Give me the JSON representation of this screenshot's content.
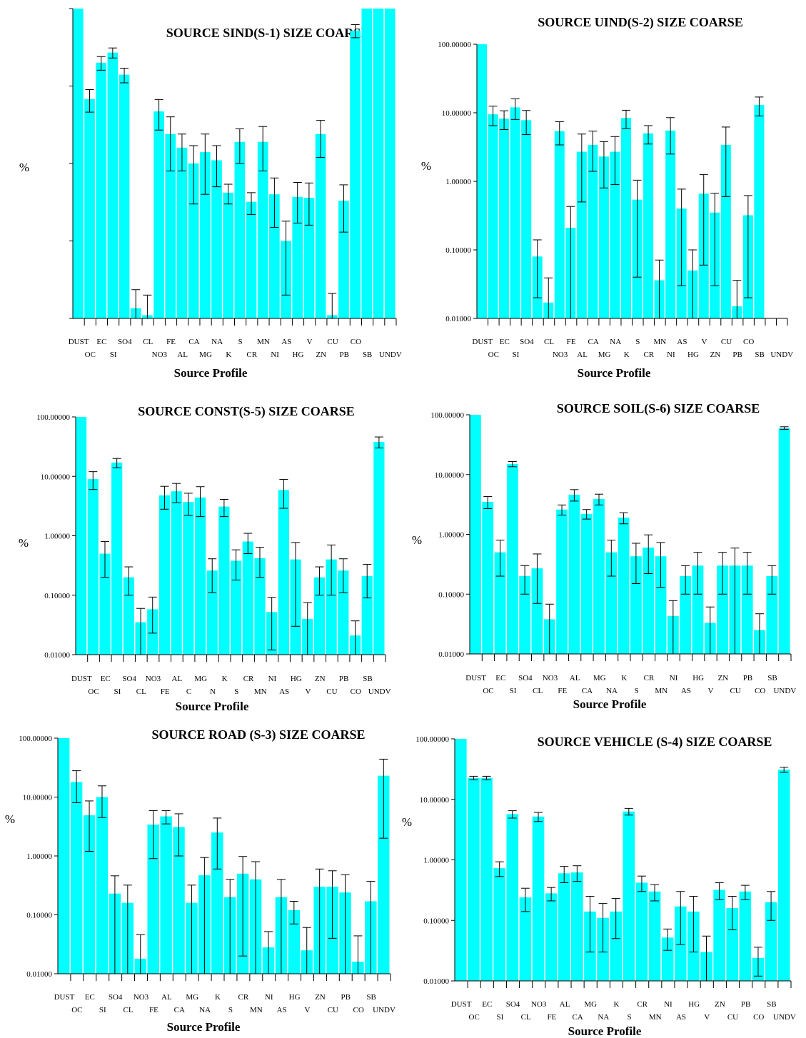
{
  "chart_data": [
    {
      "type": "bar",
      "title": "SOURCE  SIND(S-1)    SIZE COARSE",
      "xlabel": "Source Profile",
      "ylabel": "%",
      "yscale": "log",
      "ytick_labels": [],
      "categories": [
        "DUST",
        "OC",
        "EC",
        "SI",
        "SO4",
        "",
        "CL",
        "NO3",
        "FE",
        "AL",
        "CA",
        "MG",
        "NA",
        "K",
        "S",
        "CR",
        "MN",
        "NI",
        "AS",
        "HG",
        "V",
        "ZN",
        "CU",
        "PB",
        "CO",
        "SB",
        "",
        "UNDV"
      ],
      "values": [
        100,
        6.8,
        20,
        27,
        14,
        0.0135,
        0.011,
        4.7,
        2.4,
        1.6,
        1.0,
        1.4,
        1.1,
        0.42,
        1.9,
        0.32,
        1.9,
        0.4,
        0.1,
        0.37,
        0.36,
        2.4,
        0.011,
        0.33,
        52,
        100,
        100,
        100
      ],
      "errors": [
        0,
        2.2,
        4,
        4,
        3,
        0.01,
        0.009,
        2.0,
        1.6,
        0.8,
        0.7,
        1.0,
        0.6,
        0.12,
        0.9,
        0.1,
        1.1,
        0.25,
        0.08,
        0.2,
        0.2,
        1.2,
        0.01,
        0.2,
        10,
        0,
        0,
        0
      ],
      "ylim": [
        0.01,
        100
      ]
    },
    {
      "type": "bar",
      "title": "SOURCE  UIND(S-2)     SIZE COARSE",
      "xlabel": "Source Profile",
      "ylabel": "%",
      "yscale": "log",
      "ytick_labels": [
        "100.00000",
        "10.00000",
        "1.00000",
        "0.10000",
        "0.01000"
      ],
      "categories": [
        "DUST",
        "OC",
        "EC",
        "SI",
        "SO4",
        "",
        "CL",
        "NO3",
        "FE",
        "AL",
        "CA",
        "MG",
        "NA",
        "K",
        "S",
        "CR",
        "MN",
        "NI",
        "AS",
        "HG",
        "V",
        "ZN",
        "CU",
        "PB",
        "CO",
        "SB",
        "",
        "UNDV"
      ],
      "values": [
        100,
        9.5,
        8.2,
        12,
        7.8,
        0.08,
        0.017,
        5.4,
        0.21,
        2.7,
        3.4,
        2.3,
        2.7,
        8.4,
        0.54,
        5.0,
        0.036,
        5.5,
        0.4,
        0.05,
        0.66,
        0.35,
        3.4,
        0.015,
        0.32,
        13,
        0,
        0
      ],
      "errors": [
        0,
        3,
        2.5,
        4,
        3,
        0.06,
        0.022,
        2,
        0.22,
        2.2,
        2,
        1.5,
        1.8,
        2.5,
        0.5,
        1.5,
        0.035,
        3,
        0.37,
        0.05,
        0.6,
        0.32,
        2.8,
        0.021,
        0.3,
        4,
        0,
        0
      ],
      "ylim": [
        0.01,
        100
      ]
    },
    {
      "type": "bar",
      "title": "SOURCE  CONST(S-5)    SIZE COARSE",
      "xlabel": "Source Profile",
      "ylabel": "%",
      "yscale": "log",
      "ytick_labels": [
        "100.00000",
        "10.00000",
        "1.00000",
        "0.10000",
        "0.01000"
      ],
      "categories": [
        "DUST",
        "OC",
        "EC",
        "SI",
        "SO4",
        "CL",
        "NO3",
        "FE",
        "AL",
        "C",
        "MG",
        "N",
        "K",
        "S",
        "CR",
        "MN",
        "NI",
        "AS",
        "HG",
        "V",
        "ZN",
        "CU",
        "PB",
        "CO",
        "SB",
        "UNDV"
      ],
      "values": [
        100,
        9.0,
        0.5,
        17,
        0.2,
        0.035,
        0.058,
        4.8,
        5.6,
        3.7,
        4.4,
        0.26,
        3.1,
        0.38,
        0.8,
        0.42,
        0.052,
        5.9,
        0.4,
        0.04,
        0.2,
        0.4,
        0.26,
        0.021,
        0.21,
        38
      ],
      "errors": [
        0,
        3,
        0.3,
        3,
        0.1,
        0.025,
        0.035,
        2,
        2,
        1.5,
        2.3,
        0.15,
        1,
        0.2,
        0.3,
        0.22,
        0.04,
        3,
        0.37,
        0.035,
        0.1,
        0.3,
        0.15,
        0.016,
        0.12,
        8
      ],
      "ylim": [
        0.01,
        100
      ]
    },
    {
      "type": "bar",
      "title": "SOURCE  SOIL(S-6)     SIZE COARSE",
      "xlabel": "Source Profile",
      "ylabel": "%",
      "yscale": "log",
      "ytick_labels": [
        "100.00000",
        "10.00000",
        "1.00000",
        "0.10000",
        "0.01000"
      ],
      "categories": [
        "DUST",
        "OC",
        "EC",
        "SI",
        "SO4",
        "CL",
        "NO3",
        "FE",
        "AL",
        "CA",
        "MG",
        "NA",
        "K",
        "S",
        "CR",
        "MN",
        "NI",
        "AS",
        "HG",
        "V",
        "ZN",
        "CU",
        "PB",
        "CO",
        "SB",
        "UNDV"
      ],
      "values": [
        100,
        3.5,
        0.5,
        15,
        0.2,
        0.27,
        0.038,
        2.6,
        4.6,
        2.2,
        3.9,
        0.5,
        1.9,
        0.43,
        0.6,
        0.43,
        0.043,
        0.2,
        0.3,
        0.033,
        0.3,
        0.3,
        0.3,
        0.025,
        0.2,
        60
      ],
      "errors": [
        0,
        0.8,
        0.3,
        1.5,
        0.1,
        0.2,
        0.03,
        0.5,
        1,
        0.4,
        0.8,
        0.3,
        0.4,
        0.28,
        0.38,
        0.3,
        0.035,
        0.1,
        0.2,
        0.028,
        0.2,
        0.29,
        0.2,
        0.022,
        0.1,
        3
      ],
      "ylim": [
        0.01,
        100
      ]
    },
    {
      "type": "bar",
      "title": "SOURCE  ROAD (S-3) SIZE COARSE",
      "xlabel": "Source Profile",
      "ylabel": "%",
      "yscale": "log",
      "ytick_labels": [
        "100.00000",
        "10.00000",
        "1.00000",
        "0.10000",
        "0.01000"
      ],
      "categories": [
        "DUST",
        "OC",
        "EC",
        "SI",
        "SO4",
        "CL",
        "NO3",
        "FE",
        "AL",
        "CA",
        "MG",
        "NA",
        "K",
        "S",
        "CR",
        "MN",
        "NI",
        "AS",
        "HG",
        "V",
        "ZN",
        "CU",
        "PB",
        "CO",
        "SB",
        "UNDV"
      ],
      "values": [
        100,
        18,
        4.9,
        10,
        0.23,
        0.16,
        0.018,
        3.4,
        4.7,
        3.1,
        0.16,
        0.47,
        2.5,
        0.2,
        0.5,
        0.4,
        0.028,
        0.2,
        0.12,
        0.025,
        0.3,
        0.3,
        0.24,
        0.016,
        0.17,
        23
      ],
      "errors": [
        0,
        10,
        3.7,
        5.5,
        0.23,
        0.16,
        0.028,
        2.5,
        1.2,
        2.1,
        0.16,
        0.47,
        1.9,
        0.2,
        0.48,
        0.4,
        0.024,
        0.2,
        0.05,
        0.036,
        0.3,
        0.26,
        0.24,
        0.028,
        0.2,
        21
      ],
      "ylim": [
        0.01,
        100
      ]
    },
    {
      "type": "bar",
      "title": "SOURCE  VEHICLE (S-4) SIZE COARSE",
      "xlabel": "Source Profile",
      "ylabel": "%",
      "yscale": "log",
      "ytick_labels": [
        "100.00000",
        "10.00000",
        "1.00000",
        "0.10000",
        "0.01000"
      ],
      "categories": [
        "DUST",
        "OC",
        "EC",
        "SI",
        "SO4",
        "CL",
        "NO3",
        "FE",
        "AL",
        "CA",
        "MG",
        "NA",
        "K",
        "S",
        "CR",
        "MN",
        "NI",
        "AS",
        "HG",
        "V",
        "ZN",
        "CU",
        "PB",
        "CO",
        "SB",
        "UNDV"
      ],
      "values": [
        100,
        22.6,
        22.6,
        0.73,
        5.7,
        0.24,
        5.2,
        0.28,
        0.6,
        0.62,
        0.14,
        0.11,
        0.14,
        6.3,
        0.42,
        0.3,
        0.052,
        0.17,
        0.14,
        0.03,
        0.32,
        0.16,
        0.3,
        0.024,
        0.2,
        31
      ],
      "errors": [
        0,
        1.5,
        1.5,
        0.2,
        0.8,
        0.1,
        0.9,
        0.07,
        0.18,
        0.18,
        0.11,
        0.08,
        0.09,
        0.8,
        0.12,
        0.09,
        0.02,
        0.13,
        0.11,
        0.025,
        0.1,
        0.09,
        0.08,
        0.012,
        0.1,
        3
      ],
      "ylim": [
        0.01,
        100
      ]
    }
  ],
  "style": {
    "bar_color": "#00ffff",
    "background": "#ffffff",
    "axis_color": "#000000"
  }
}
